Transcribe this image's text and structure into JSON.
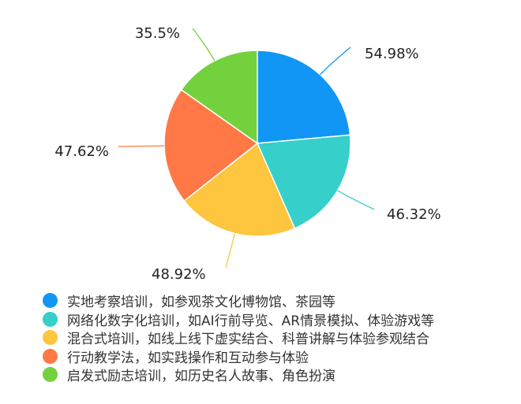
{
  "chart_data": {
    "type": "pie",
    "start_angle": "12 o'clock, clockwise",
    "legend_position": "bottom-left",
    "series": [
      {
        "name": "实地考察培训，如参观茶文化博物馆、茶园等",
        "value": 54.98,
        "label": "54.98%",
        "color": "#1296f5"
      },
      {
        "name": "网络化数字化培训，如AI行前导览、AR情景模拟、体验游戏等",
        "value": 46.32,
        "label": "46.32%",
        "color": "#36cfc9"
      },
      {
        "name": "混合式培训，如线上线下虚实结合、科普讲解与体验参观结合",
        "value": 48.92,
        "label": "48.92%",
        "color": "#fec53e"
      },
      {
        "name": "行动教学法，如实践操作和互动参与体验",
        "value": 47.62,
        "label": "47.62%",
        "color": "#ff7845"
      },
      {
        "name": "启发式励志培训，如历史名人故事、角色扮演",
        "value": 35.5,
        "label": "35.5%",
        "color": "#73d13d"
      }
    ]
  }
}
